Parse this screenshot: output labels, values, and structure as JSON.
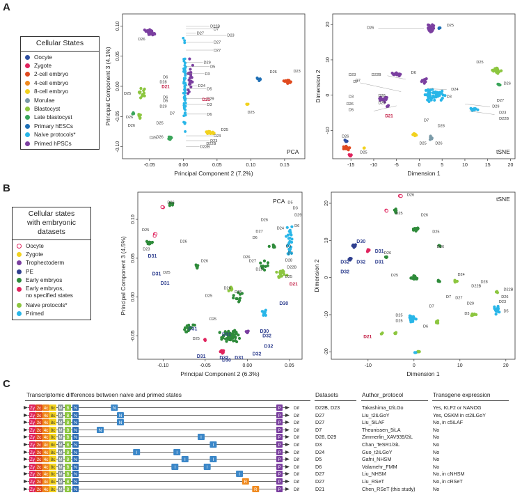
{
  "panels": {
    "a": "A",
    "b": "B",
    "c": "C"
  },
  "legend_a": {
    "title": "Cellular States",
    "items": [
      {
        "label": "Oocyte",
        "color": "#2f4fa0"
      },
      {
        "label": "Zygote",
        "color": "#e0245e"
      },
      {
        "label": "2-cell embryo",
        "color": "#e04a1f"
      },
      {
        "label": "4-cell embryo",
        "color": "#f08a1f"
      },
      {
        "label": "8-cell embryo",
        "color": "#f2d21f"
      },
      {
        "label": "Morulae",
        "color": "#7a9aa8"
      },
      {
        "label": "Blastocyst",
        "color": "#8cc63f"
      },
      {
        "label": "Late blastocyst",
        "color": "#3aa55a"
      },
      {
        "label": "Primary hESCs",
        "color": "#1f6fb5"
      },
      {
        "label": "Naive protocols*",
        "color": "#29b6e8"
      },
      {
        "label": "Primed hPSCs",
        "color": "#7b3fa0"
      }
    ]
  },
  "legend_b": {
    "title_line1": "Cellular states",
    "title_line2": "with embryonic",
    "title_line3": "datasets",
    "items": [
      {
        "label": "Oocyte",
        "color": "#ffffff",
        "border": "#e0245e"
      },
      {
        "label": "Zygote",
        "color": "#f2d21f",
        "border": "#f2d21f"
      },
      {
        "label": "Trophectoderm",
        "color": "#7b3fa0",
        "border": "#7b3fa0"
      },
      {
        "label": "PE",
        "color": "#2f3f8f",
        "border": "#2f3f8f"
      },
      {
        "label": "Early embryos",
        "color": "#2e8b3a",
        "border": "#2e8b3a"
      },
      {
        "label": "Early embryos,",
        "label2": "no specified states",
        "color": "#e0245e",
        "border": "#e0245e"
      },
      {
        "label": "Naive protocols*",
        "color": "#8cc63f",
        "border": "#8cc63f"
      },
      {
        "label": "Primed",
        "color": "#29b6e8",
        "border": "#29b6e8"
      }
    ]
  },
  "chart_data": [
    {
      "type": "scatter",
      "panel": "A-left",
      "title": "PCA",
      "xlabel": "Principal Component 2 (7.2%)",
      "ylabel": "Principal Component 3 (4.1%)",
      "xlim": [
        -0.09,
        0.18
      ],
      "ylim": [
        -0.12,
        0.12
      ],
      "xticks": [
        "-0.05",
        "0.00",
        "0.05",
        "0.10",
        "0.15"
      ],
      "xtick_vals": [
        -0.05,
        0,
        0.05,
        0.1,
        0.15
      ],
      "yticks": [
        "0.10",
        "0.05",
        "0.00",
        "-0.05",
        "-0.10"
      ],
      "ytick_vals": [
        0.1,
        0.05,
        0,
        -0.05,
        -0.1
      ],
      "clusters": [
        {
          "name": "Primed hPSCs",
          "color": "#7b3fa0",
          "x": -0.045,
          "y": 0.085,
          "sx": 0.012,
          "sy": 0.01,
          "n": 30
        },
        {
          "name": "Naive protocols*",
          "color": "#29b6e8",
          "x": 0.003,
          "y": 0.0,
          "sx": 0.004,
          "sy": 0.055,
          "n": 60
        },
        {
          "name": "2-cell embryo",
          "color": "#e04a1f",
          "x": 0.155,
          "y": 0.01,
          "sx": 0.01,
          "sy": 0.005,
          "n": 20
        },
        {
          "name": "8-cell embryo",
          "color": "#f2d21f",
          "x": 0.04,
          "y": -0.075,
          "sx": 0.012,
          "sy": 0.006,
          "n": 14
        },
        {
          "name": "Blastocyst",
          "color": "#8cc63f",
          "x": -0.055,
          "y": -0.01,
          "sx": 0.008,
          "sy": 0.012,
          "n": 12
        },
        {
          "name": "Late blastocyst",
          "color": "#3aa55a",
          "x": -0.02,
          "y": -0.085,
          "sx": 0.008,
          "sy": 0.006,
          "n": 10
        },
        {
          "name": "Primed hPSCs",
          "color": "#7b3fa0",
          "x": 0.01,
          "y": 0.02,
          "sx": 0.008,
          "sy": 0.035,
          "n": 24
        }
      ],
      "labels": [
        "D22B",
        "D7",
        "D27",
        "D23",
        "D27",
        "D27",
        "D29",
        "D5",
        "D3",
        "D26",
        "D25",
        "D28",
        "D6",
        "D24",
        "D21",
        "D5",
        "D29",
        "D3",
        "D23",
        "D25",
        "D23",
        "D22B",
        "D23",
        "D25",
        "D26",
        "D26",
        "D25",
        "D28",
        "D21",
        "D6",
        "D5",
        "D7",
        "D27",
        "D6",
        "D25",
        "D26",
        "D25"
      ]
    },
    {
      "type": "scatter",
      "panel": "A-right",
      "title": "tSNE",
      "xlabel": "Dimension 1",
      "ylabel": "Dimension 2",
      "xlim": [
        -19,
        21
      ],
      "ylim": [
        -18,
        23
      ],
      "xticks": [
        "-15",
        "-10",
        "-5",
        "0",
        "5",
        "10",
        "15",
        "20"
      ],
      "xtick_vals": [
        -15,
        -10,
        -5,
        0,
        5,
        10,
        15,
        20
      ],
      "yticks": [
        "20",
        "10",
        "0",
        "-10"
      ],
      "ytick_vals": [
        20,
        10,
        0,
        -10
      ],
      "labels": [
        "D26",
        "D25",
        "D6",
        "D25",
        "D22B",
        "D23",
        "D7",
        "D24",
        "D3",
        "D26",
        "D28",
        "D29",
        "D5",
        "D21",
        "D7",
        "D28",
        "D29",
        "D27",
        "D23",
        "D22B",
        "D26",
        "D25",
        "D25",
        "D26"
      ]
    },
    {
      "type": "scatter",
      "panel": "B-left",
      "title": "PCA",
      "xlabel": "Principal Component 2 (6.3%)",
      "ylabel": "Principal Component 3 (4.5%)",
      "xlim": [
        -0.13,
        0.065
      ],
      "ylim": [
        -0.08,
        0.135
      ],
      "xticks": [
        "-0.10",
        "-0.05",
        "0.00",
        "0.05"
      ],
      "xtick_vals": [
        -0.1,
        -0.05,
        0,
        0.05
      ],
      "yticks": [
        "0.10",
        "0.05",
        "0.00",
        "-0.05"
      ],
      "ytick_vals": [
        0.1,
        0.05,
        0,
        -0.05
      ],
      "labels": [
        "D26",
        "D25",
        "D23",
        "D31",
        "D31",
        "D25",
        "D31",
        "D25",
        "D26",
        "D25",
        "D31",
        "D31",
        "D31",
        "D30",
        "D32",
        "D30",
        "D32",
        "D32",
        "D31",
        "D26",
        "D5",
        "D3",
        "D29",
        "D6",
        "D27",
        "D26",
        "D24",
        "D21",
        "D28",
        "D22B",
        "D25",
        "D6",
        "D3",
        "D7",
        "D27",
        "D25",
        "D26",
        "D25"
      ]
    },
    {
      "type": "scatter",
      "panel": "B-right",
      "title": "tSNE",
      "xlabel": "Dimension 1",
      "ylabel": "Dimension 2",
      "xlim": [
        -18,
        22
      ],
      "ylim": [
        -22,
        23
      ],
      "xticks": [
        "-10",
        "0",
        "10",
        "20"
      ],
      "xtick_vals": [
        -10,
        0,
        10,
        20
      ],
      "yticks": [
        "20",
        "10",
        "0",
        "-10",
        "-20"
      ],
      "ytick_vals": [
        20,
        10,
        0,
        -10,
        -20
      ],
      "labels": [
        "D26",
        "D25",
        "D26",
        "D25",
        "D30",
        "D31",
        "D26",
        "D32",
        "D32",
        "D32",
        "D25",
        "D7",
        "D24",
        "D22B",
        "D27",
        "D6",
        "D25",
        "D7",
        "D3",
        "D29",
        "D28",
        "D5",
        "D23",
        "D22B",
        "D21",
        "D25"
      ]
    }
  ],
  "section_c": {
    "headers": {
      "diff": "Transcriptomic differences between naive and primed states",
      "datasets": "Datasets",
      "author": "Author_protocol",
      "transgene": "Transgene expression"
    },
    "segment_labels": [
      "Zy",
      "2c",
      "4c",
      "8c",
      "M",
      "B",
      "N",
      "P",
      "Dif",
      "R",
      "I"
    ],
    "rows": [
      {
        "datasets": "D22B, D23",
        "author": "Takashima_t2iLGo",
        "transgene": "Yes, KLF2 or NANOG",
        "extras": [
          {
            "t": "N",
            "pos": 0.17
          }
        ]
      },
      {
        "datasets": "D27",
        "author": "Liu_t2iLGoY",
        "transgene": "Yes, OSKM in ct2iLGoY",
        "extras": [
          {
            "t": "N",
            "pos": 0.2
          }
        ]
      },
      {
        "datasets": "D27",
        "author": "Liu_5iLAF",
        "transgene": "No, in c5iLAF",
        "extras": [
          {
            "t": "N",
            "pos": 0.2
          }
        ]
      },
      {
        "datasets": "D7",
        "author": "Theunissen_5iLA",
        "transgene": "No",
        "extras": [
          {
            "t": "N",
            "pos": 0.1
          }
        ]
      },
      {
        "datasets": "D28, D29",
        "author": "Zimmerlin_XAV939/2iL",
        "transgene": "No",
        "extras": [
          {
            "t": "I",
            "pos": 0.6
          }
        ]
      },
      {
        "datasets": "D3",
        "author": "Chan_TeSR1/3iL",
        "transgene": "No",
        "extras": [
          {
            "t": "I",
            "pos": 0.66
          }
        ]
      },
      {
        "datasets": "D24",
        "author": "Guo_t2iLGoY",
        "transgene": "No",
        "extras": [
          {
            "t": "I",
            "pos": 0.28
          },
          {
            "t": "I",
            "pos": 0.48
          }
        ]
      },
      {
        "datasets": "D5",
        "author": "Gafni_NHSM",
        "transgene": "No",
        "extras": [
          {
            "t": "I",
            "pos": 0.52
          },
          {
            "t": "I",
            "pos": 0.66
          }
        ]
      },
      {
        "datasets": "D6",
        "author": "Valamehr_FMM",
        "transgene": "No",
        "extras": [
          {
            "t": "I",
            "pos": 0.47
          },
          {
            "t": "I",
            "pos": 0.63
          }
        ]
      },
      {
        "datasets": "D27",
        "author": "Liu_NHSM",
        "transgene": "No, in cNHSM",
        "extras": [
          {
            "t": "I",
            "pos": 0.79
          }
        ]
      },
      {
        "datasets": "D27",
        "author": "Liu_RSeT",
        "transgene": "No, in cRSeT",
        "extras": [
          {
            "t": "R",
            "pos": 0.82
          }
        ]
      },
      {
        "datasets": "D21",
        "author": "Chen_RSeT (this study)",
        "transgene": "No",
        "extras": [
          {
            "t": "R",
            "pos": 0.87
          }
        ]
      }
    ]
  }
}
